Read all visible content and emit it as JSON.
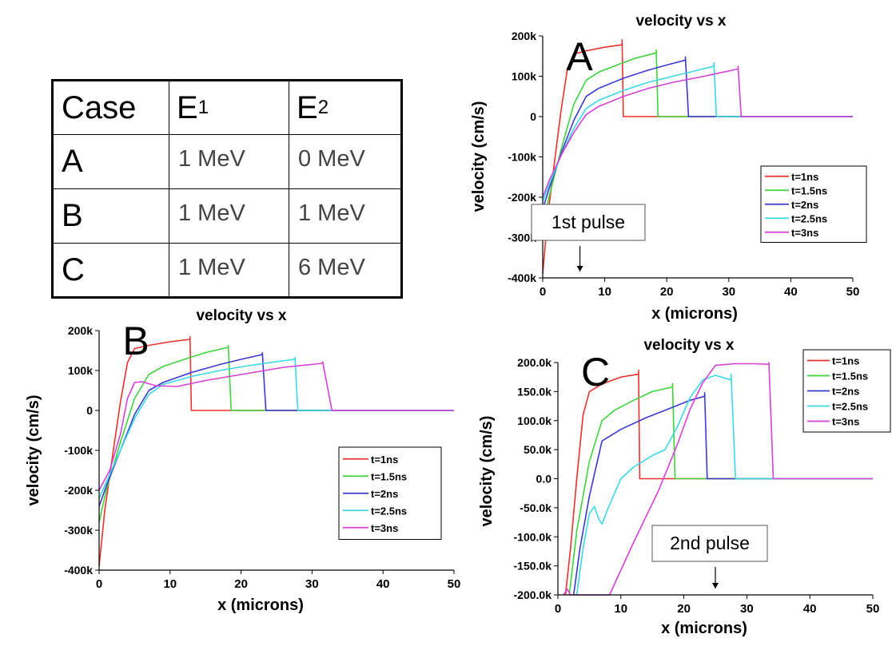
{
  "table": {
    "headers": [
      "Case",
      "E",
      "E"
    ],
    "header_subscripts": [
      "",
      "1",
      "2"
    ],
    "rows": [
      {
        "case": "A",
        "e1": "1 MeV",
        "e2": "0 MeV"
      },
      {
        "case": "B",
        "e1": "1 MeV",
        "e2": "1 MeV"
      },
      {
        "case": "C",
        "e1": "1 MeV",
        "e2": "6 MeV"
      }
    ]
  },
  "chart_data": [
    {
      "type": "line",
      "panel_letter": "A",
      "title": "velocity vs x",
      "xlabel": "x (microns)",
      "ylabel": "velocity (cm/s)",
      "xlim": [
        0,
        50
      ],
      "ylim": [
        -400000,
        200000
      ],
      "xticks": [
        0,
        10,
        20,
        30,
        40,
        50
      ],
      "xtick_labels": [
        "0",
        "10",
        "20",
        "30",
        "40",
        "50"
      ],
      "yticks": [
        -400000,
        -300000,
        -200000,
        -100000,
        0,
        100000,
        200000
      ],
      "ytick_labels": [
        "-400k",
        "-300k",
        "-200k",
        "-100k",
        "0",
        "100k",
        "200k"
      ],
      "legend_position": "right",
      "annotation": {
        "text": "1st pulse",
        "x": 6
      },
      "series": [
        {
          "name": "t=1ns",
          "color": "#e8322c",
          "points": [
            [
              0,
              -390000
            ],
            [
              0.8,
              -250000
            ],
            [
              2,
              -100000
            ],
            [
              3,
              20000
            ],
            [
              4,
              120000
            ],
            [
              5,
              155000
            ],
            [
              7,
              163000
            ],
            [
              10,
              172000
            ],
            [
              12.8,
              178000
            ],
            [
              12.8,
              190000
            ],
            [
              13,
              0
            ],
            [
              50,
              0
            ]
          ]
        },
        {
          "name": "t=1.5ns",
          "color": "#3ed33e",
          "points": [
            [
              0,
              -280000
            ],
            [
              1,
              -200000
            ],
            [
              3,
              -80000
            ],
            [
              5,
              30000
            ],
            [
              7,
              90000
            ],
            [
              9,
              110000
            ],
            [
              12,
              128000
            ],
            [
              15,
              145000
            ],
            [
              18.3,
              158000
            ],
            [
              18.3,
              165000
            ],
            [
              18.6,
              0
            ],
            [
              50,
              0
            ]
          ]
        },
        {
          "name": "t=2ns",
          "color": "#3a3ad0",
          "points": [
            [
              0,
              -230000
            ],
            [
              1,
              -180000
            ],
            [
              3,
              -90000
            ],
            [
              5,
              -10000
            ],
            [
              7,
              50000
            ],
            [
              9,
              70000
            ],
            [
              13,
              95000
            ],
            [
              17,
              115000
            ],
            [
              20,
              128000
            ],
            [
              23,
              140000
            ],
            [
              23,
              148000
            ],
            [
              23.5,
              0
            ],
            [
              50,
              0
            ]
          ]
        },
        {
          "name": "t=2.5ns",
          "color": "#3ad8e6",
          "points": [
            [
              0,
              -210000
            ],
            [
              1,
              -170000
            ],
            [
              3,
              -95000
            ],
            [
              5,
              -30000
            ],
            [
              7,
              20000
            ],
            [
              9,
              40000
            ],
            [
              13,
              65000
            ],
            [
              17,
              85000
            ],
            [
              21,
              100000
            ],
            [
              25,
              115000
            ],
            [
              27.6,
              125000
            ],
            [
              27.6,
              133000
            ],
            [
              28,
              0
            ],
            [
              50,
              0
            ]
          ]
        },
        {
          "name": "t=3ns",
          "color": "#d640d6",
          "points": [
            [
              0,
              -200000
            ],
            [
              1,
              -160000
            ],
            [
              3,
              -95000
            ],
            [
              5,
              -40000
            ],
            [
              7,
              5000
            ],
            [
              9,
              25000
            ],
            [
              13,
              50000
            ],
            [
              17,
              70000
            ],
            [
              21,
              85000
            ],
            [
              26,
              100000
            ],
            [
              31.5,
              118000
            ],
            [
              31.5,
              125000
            ],
            [
              32,
              0
            ],
            [
              50,
              0
            ]
          ]
        }
      ]
    },
    {
      "type": "line",
      "panel_letter": "B",
      "title": "velocity vs x",
      "xlabel": "x (microns)",
      "ylabel": "velocity (cm/s)",
      "xlim": [
        0,
        50
      ],
      "ylim": [
        -400000,
        200000
      ],
      "xticks": [
        0,
        10,
        20,
        30,
        40,
        50
      ],
      "xtick_labels": [
        "0",
        "10",
        "20",
        "30",
        "40",
        "50"
      ],
      "yticks": [
        -400000,
        -300000,
        -200000,
        -100000,
        0,
        100000,
        200000
      ],
      "ytick_labels": [
        "-400k",
        "-300k",
        "-200k",
        "-100k",
        "0",
        "100k",
        "200k"
      ],
      "legend_position": "right",
      "series": [
        {
          "name": "t=1ns",
          "color": "#e8322c",
          "points": [
            [
              0,
              -390000
            ],
            [
              0.8,
              -250000
            ],
            [
              2,
              -100000
            ],
            [
              3,
              20000
            ],
            [
              4,
              120000
            ],
            [
              5,
              155000
            ],
            [
              7,
              163000
            ],
            [
              10,
              172000
            ],
            [
              12.8,
              178000
            ],
            [
              12.8,
              185000
            ],
            [
              13,
              0
            ],
            [
              50,
              0
            ]
          ]
        },
        {
          "name": "t=1.5ns",
          "color": "#3ed33e",
          "points": [
            [
              0,
              -280000
            ],
            [
              1,
              -200000
            ],
            [
              3,
              -80000
            ],
            [
              5,
              30000
            ],
            [
              7,
              90000
            ],
            [
              9,
              110000
            ],
            [
              12,
              128000
            ],
            [
              15,
              145000
            ],
            [
              18.2,
              158000
            ],
            [
              18.2,
              163000
            ],
            [
              18.6,
              0
            ],
            [
              50,
              0
            ]
          ]
        },
        {
          "name": "t=2ns",
          "color": "#3a3ad0",
          "points": [
            [
              0,
              -240000
            ],
            [
              1,
              -190000
            ],
            [
              3,
              -100000
            ],
            [
              5,
              -10000
            ],
            [
              7,
              50000
            ],
            [
              9,
              70000
            ],
            [
              13,
              95000
            ],
            [
              17,
              115000
            ],
            [
              20,
              128000
            ],
            [
              23,
              140000
            ],
            [
              23,
              145000
            ],
            [
              23.5,
              0
            ],
            [
              50,
              0
            ]
          ]
        },
        {
          "name": "t=2.5ns",
          "color": "#3ad8e6",
          "points": [
            [
              0,
              -220000
            ],
            [
              1,
              -180000
            ],
            [
              3,
              -100000
            ],
            [
              5,
              -20000
            ],
            [
              7,
              40000
            ],
            [
              9,
              65000
            ],
            [
              13,
              85000
            ],
            [
              17,
              100000
            ],
            [
              21,
              112000
            ],
            [
              25,
              122000
            ],
            [
              27.6,
              128000
            ],
            [
              27.6,
              133000
            ],
            [
              28,
              0
            ],
            [
              50,
              0
            ]
          ]
        },
        {
          "name": "t=3ns",
          "color": "#d640d6",
          "points": [
            [
              0,
              -200000
            ],
            [
              1.5,
              -150000
            ],
            [
              3,
              -60000
            ],
            [
              4,
              30000
            ],
            [
              5,
              70000
            ],
            [
              6,
              72000
            ],
            [
              8,
              62000
            ],
            [
              11,
              60000
            ],
            [
              15,
              75000
            ],
            [
              20,
              90000
            ],
            [
              26,
              108000
            ],
            [
              31.5,
              118000
            ],
            [
              31.5,
              122000
            ],
            [
              32.8,
              0
            ],
            [
              50,
              0
            ]
          ]
        }
      ]
    },
    {
      "type": "line",
      "panel_letter": "C",
      "title": "velocity vs x",
      "xlabel": "x (microns)",
      "ylabel": "velocity (cm/s)",
      "xlim": [
        0,
        50
      ],
      "ylim": [
        -200000,
        200000
      ],
      "xticks": [
        0,
        10,
        20,
        30,
        40,
        50
      ],
      "xtick_labels": [
        "0",
        "10",
        "20",
        "30",
        "40",
        "50"
      ],
      "yticks": [
        -200000,
        -150000,
        -100000,
        -50000,
        0,
        50000,
        100000,
        150000,
        200000
      ],
      "ytick_labels": [
        "-200.0k",
        "-150.0k",
        "-100.0k",
        "-50.0k",
        "0.0",
        "50.0k",
        "100.0k",
        "150.0k",
        "200.0k"
      ],
      "legend_position": "outside-right",
      "annotation": {
        "text": "2nd pulse",
        "x": 25
      },
      "series": [
        {
          "name": "t=1ns",
          "color": "#e8322c",
          "points": [
            [
              1.2,
              -200000
            ],
            [
              2,
              -120000
            ],
            [
              3,
              0
            ],
            [
              4,
              110000
            ],
            [
              5,
              150000
            ],
            [
              7,
              163000
            ],
            [
              10,
              175000
            ],
            [
              12.8,
              180000
            ],
            [
              12.8,
              187000
            ],
            [
              13,
              0
            ],
            [
              50,
              0
            ]
          ]
        },
        {
          "name": "t=1.5ns",
          "color": "#3ed33e",
          "points": [
            [
              1.8,
              -200000
            ],
            [
              3,
              -90000
            ],
            [
              5,
              30000
            ],
            [
              7,
              100000
            ],
            [
              9,
              118000
            ],
            [
              12,
              135000
            ],
            [
              15,
              150000
            ],
            [
              18.2,
              158000
            ],
            [
              18.2,
              164000
            ],
            [
              18.6,
              0
            ],
            [
              50,
              0
            ]
          ]
        },
        {
          "name": "t=2ns",
          "color": "#3a3ad0",
          "points": [
            [
              2.5,
              -200000
            ],
            [
              3.5,
              -120000
            ],
            [
              5,
              -30000
            ],
            [
              7,
              65000
            ],
            [
              10,
              85000
            ],
            [
              14,
              105000
            ],
            [
              18,
              122000
            ],
            [
              21,
              135000
            ],
            [
              23.3,
              142000
            ],
            [
              23.3,
              148000
            ],
            [
              23.7,
              0
            ],
            [
              50,
              0
            ]
          ]
        },
        {
          "name": "t=2.5ns",
          "color": "#3ad8e6",
          "points": [
            [
              3,
              -200000
            ],
            [
              4,
              -120000
            ],
            [
              5,
              -60000
            ],
            [
              5.8,
              -48000
            ],
            [
              6.5,
              -70000
            ],
            [
              7,
              -78000
            ],
            [
              8,
              -50000
            ],
            [
              10,
              0
            ],
            [
              12,
              20000
            ],
            [
              15,
              40000
            ],
            [
              17,
              50000
            ],
            [
              19,
              90000
            ],
            [
              21,
              140000
            ],
            [
              23,
              170000
            ],
            [
              25,
              178000
            ],
            [
              27.5,
              170000
            ],
            [
              27.5,
              180000
            ],
            [
              28.2,
              0
            ],
            [
              50,
              0
            ]
          ]
        },
        {
          "name": "t=3ns",
          "color": "#d640d6",
          "points": [
            [
              0.9,
              -200000
            ],
            [
              1.5,
              -190000
            ],
            [
              2,
              -200000
            ],
            [
              8.2,
              -200000
            ],
            [
              12,
              -110000
            ],
            [
              16,
              -20000
            ],
            [
              19,
              60000
            ],
            [
              21,
              120000
            ],
            [
              23,
              165000
            ],
            [
              25,
              195000
            ],
            [
              28,
              198000
            ],
            [
              31,
              198000
            ],
            [
              33.5,
              197000
            ],
            [
              33.5,
              200000
            ],
            [
              34.2,
              0
            ],
            [
              50,
              0
            ]
          ]
        }
      ]
    }
  ]
}
